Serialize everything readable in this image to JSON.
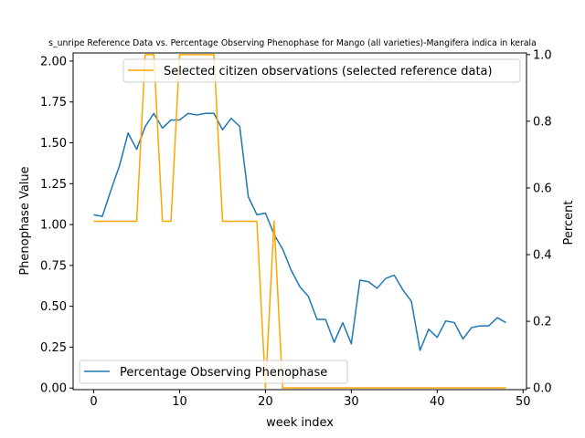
{
  "chart_data": {
    "type": "line",
    "title": "s_unripe Reference Data vs. Percentage Observing Phenophase for Mango (all varieties)-Mangifera indica in kerala",
    "xlabel": "week index",
    "ylabel_left": "Phenophase Value",
    "ylabel_right": "Percent",
    "xlim": [
      -2.4,
      50.4
    ],
    "ylim_left": [
      -0.01,
      2.05
    ],
    "ylim_right": [
      -0.005,
      1.005
    ],
    "x_ticks": [
      "0",
      "10",
      "20",
      "30",
      "40",
      "50"
    ],
    "y_left_ticks": [
      "0.00",
      "0.25",
      "0.50",
      "0.75",
      "1.00",
      "1.25",
      "1.50",
      "1.75",
      "2.00"
    ],
    "y_right_ticks": [
      "0.0",
      "0.2",
      "0.4",
      "0.6",
      "0.8",
      "1.0"
    ],
    "series": [
      {
        "name": "Percentage Observing Phenophase",
        "axis": "left",
        "color": "#1f77b4",
        "legend_position": "lower left",
        "x": [
          0,
          1,
          2,
          3,
          4,
          5,
          6,
          7,
          8,
          9,
          10,
          11,
          12,
          13,
          14,
          15,
          16,
          17,
          18,
          19,
          20,
          21,
          22,
          23,
          24,
          25,
          26,
          27,
          28,
          29,
          30,
          31,
          32,
          33,
          34,
          35,
          36,
          37,
          38,
          39,
          40,
          41,
          42,
          43,
          44,
          45,
          46,
          47,
          48
        ],
        "values": [
          1.06,
          1.05,
          1.21,
          1.36,
          1.56,
          1.46,
          1.6,
          1.68,
          1.59,
          1.64,
          1.64,
          1.68,
          1.67,
          1.68,
          1.68,
          1.58,
          1.65,
          1.6,
          1.17,
          1.06,
          1.07,
          0.94,
          0.85,
          0.72,
          0.62,
          0.56,
          0.42,
          0.42,
          0.28,
          0.4,
          0.27,
          0.66,
          0.65,
          0.61,
          0.67,
          0.69,
          0.6,
          0.53,
          0.23,
          0.36,
          0.31,
          0.41,
          0.4,
          0.3,
          0.37,
          0.38,
          0.38,
          0.43,
          0.4
        ]
      },
      {
        "name": "Selected citizen observations (selected reference data)",
        "axis": "right",
        "color": "#ffa500",
        "legend_position": "upper right",
        "x": [
          0,
          1,
          2,
          3,
          4,
          5,
          6,
          7,
          8,
          9,
          10,
          11,
          12,
          13,
          14,
          15,
          16,
          17,
          18,
          19,
          20,
          21,
          22,
          23,
          24,
          25,
          26,
          27,
          28,
          29,
          30,
          31,
          32,
          33,
          34,
          35,
          36,
          37,
          38,
          39,
          40,
          41,
          42,
          43,
          44,
          45,
          46,
          47,
          48
        ],
        "values": [
          0.5,
          0.5,
          0.5,
          0.5,
          0.5,
          0.5,
          1,
          1,
          0.5,
          0.5,
          1,
          1,
          1,
          1,
          1,
          0.5,
          0.5,
          0.5,
          0.5,
          0.5,
          0,
          0.5,
          0,
          0,
          0,
          0,
          0,
          0,
          0,
          0,
          0,
          0,
          0,
          0,
          0,
          0,
          0,
          0,
          0,
          0,
          0,
          0,
          0,
          0,
          0,
          0,
          0,
          0,
          0
        ]
      }
    ]
  }
}
